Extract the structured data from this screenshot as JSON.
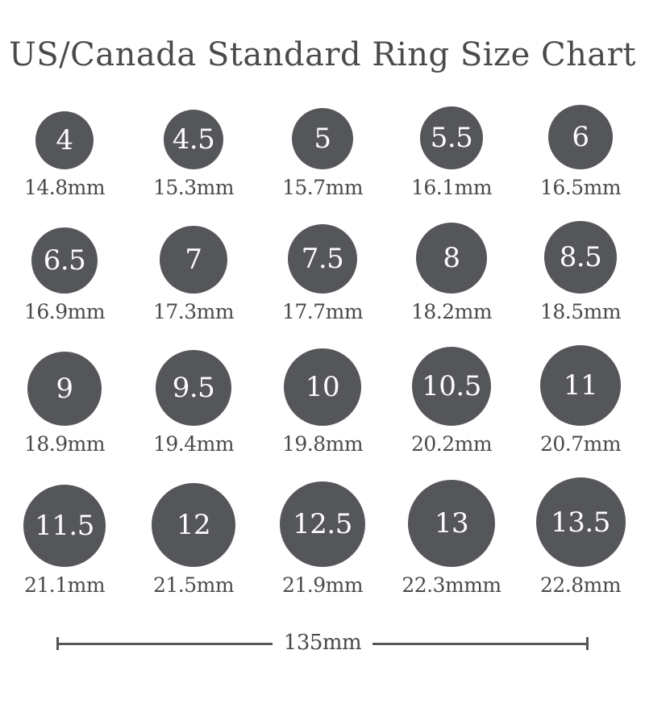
{
  "title": "US/Canada Standard Ring Size Chart",
  "colors": {
    "background": "#ffffff",
    "circle_fill": "#55565a",
    "circle_text": "#fdfdfd",
    "text": "#4a4a4c",
    "scale_bar": "#55565a"
  },
  "scale_bar": {
    "label": "135mm"
  },
  "chart_data": {
    "type": "table",
    "title": "US/Canada Standard Ring Size Chart",
    "columns": [
      "us_canada_ring_size",
      "inner_diameter_mm"
    ],
    "columns_per_row": 5,
    "sizes": [
      "4",
      "4.5",
      "5",
      "5.5",
      "6",
      "6.5",
      "7",
      "7.5",
      "8",
      "8.5",
      "9",
      "9.5",
      "10",
      "10.5",
      "11",
      "11.5",
      "12",
      "12.5",
      "13",
      "13.5"
    ],
    "diameters_mm": [
      14.8,
      15.3,
      15.7,
      16.1,
      16.5,
      16.9,
      17.3,
      17.7,
      18.2,
      18.5,
      18.9,
      19.4,
      19.8,
      20.2,
      20.7,
      21.1,
      21.5,
      21.9,
      22.3,
      22.8
    ],
    "diameter_labels": [
      "14.8mm",
      "15.3mm",
      "15.7mm",
      "16.1mm",
      "16.5mm",
      "16.9mm",
      "17.3mm",
      "17.7mm",
      "18.2mm",
      "18.5mm",
      "18.9mm",
      "19.4mm",
      "19.8mm",
      "20.2mm",
      "20.7mm",
      "21.1mm",
      "21.5mm",
      "21.9mm",
      "22.3mmm",
      "22.8mm"
    ],
    "scale_annotation": "135mm",
    "drawn_to_scale": true
  }
}
